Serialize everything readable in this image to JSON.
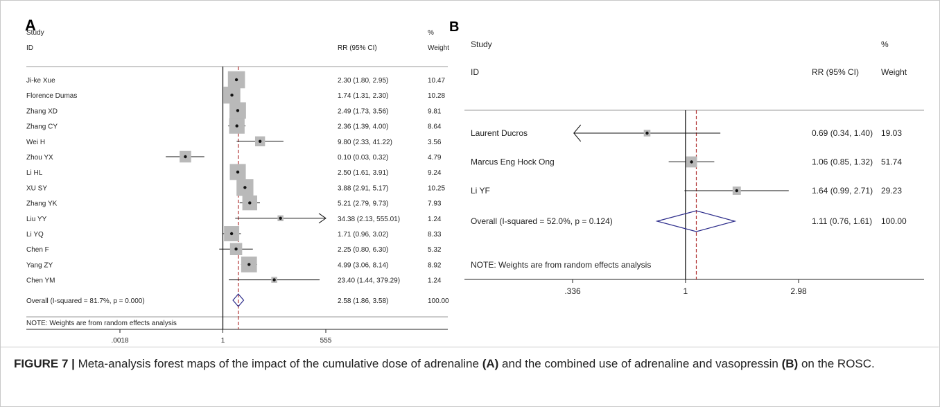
{
  "figure": {
    "caption": {
      "label": "FIGURE 7",
      "bar": "|",
      "text1": "Meta-analysis forest maps of the impact of the cumulative dose of adrenaline",
      "ref_a": "(A)",
      "text2": "and the combined use of adrenaline and vasopressin",
      "ref_b": "(B)",
      "text3": "on the ROSC."
    }
  },
  "chart_data": [
    {
      "type": "forest",
      "panel_label": "A",
      "headers": {
        "study_top": "Study",
        "study_id": "ID",
        "effect": "RR (95% CI)",
        "weight_top": "%",
        "weight": "Weight"
      },
      "x_scale": "log",
      "xlim": [
        0.0018,
        555
      ],
      "null_line": 1,
      "x_ticks": [
        ".0018",
        "1",
        "555"
      ],
      "studies": [
        {
          "name": "Ji-ke Xue",
          "rr": 2.3,
          "lo": 1.8,
          "hi": 2.95,
          "ci_text": "2.30 (1.80, 2.95)",
          "weight": "10.47"
        },
        {
          "name": "Florence Dumas",
          "rr": 1.74,
          "lo": 1.31,
          "hi": 2.3,
          "ci_text": "1.74 (1.31, 2.30)",
          "weight": "10.28"
        },
        {
          "name": "Zhang XD",
          "rr": 2.49,
          "lo": 1.73,
          "hi": 3.56,
          "ci_text": "2.49 (1.73, 3.56)",
          "weight": "9.81"
        },
        {
          "name": "Zhang CY",
          "rr": 2.36,
          "lo": 1.39,
          "hi": 4.0,
          "ci_text": "2.36 (1.39, 4.00)",
          "weight": "8.64"
        },
        {
          "name": "Wei H",
          "rr": 9.8,
          "lo": 2.33,
          "hi": 41.22,
          "ci_text": "9.80 (2.33, 41.22)",
          "weight": "3.56"
        },
        {
          "name": "Zhou YX",
          "rr": 0.1,
          "lo": 0.03,
          "hi": 0.32,
          "ci_text": "0.10 (0.03, 0.32)",
          "weight": "4.79"
        },
        {
          "name": "Li HL",
          "rr": 2.5,
          "lo": 1.61,
          "hi": 3.91,
          "ci_text": "2.50 (1.61, 3.91)",
          "weight": "9.24"
        },
        {
          "name": "XU SY",
          "rr": 3.88,
          "lo": 2.91,
          "hi": 5.17,
          "ci_text": "3.88 (2.91, 5.17)",
          "weight": "10.25"
        },
        {
          "name": "Zhang YK",
          "rr": 5.21,
          "lo": 2.79,
          "hi": 9.73,
          "ci_text": "5.21 (2.79, 9.73)",
          "weight": "7.93"
        },
        {
          "name": "Liu YY",
          "rr": 34.38,
          "lo": 2.13,
          "hi": 555.01,
          "ci_text": "34.38 (2.13, 555.01)",
          "weight": "1.24",
          "arrow_right": true
        },
        {
          "name": "Li YQ",
          "rr": 1.71,
          "lo": 0.96,
          "hi": 3.02,
          "ci_text": "1.71 (0.96, 3.02)",
          "weight": "8.33"
        },
        {
          "name": "Chen F",
          "rr": 2.25,
          "lo": 0.8,
          "hi": 6.3,
          "ci_text": "2.25 (0.80, 6.30)",
          "weight": "5.32"
        },
        {
          "name": "Yang ZY",
          "rr": 4.99,
          "lo": 3.06,
          "hi": 8.14,
          "ci_text": "4.99 (3.06, 8.14)",
          "weight": "8.92"
        },
        {
          "name": "Chen YM",
          "rr": 23.4,
          "lo": 1.44,
          "hi": 379.29,
          "ci_text": "23.40 (1.44, 379.29)",
          "weight": "1.24"
        }
      ],
      "overall": {
        "label": "Overall  (I-squared = 81.7%, p = 0.000)",
        "rr": 2.58,
        "lo": 1.86,
        "hi": 3.58,
        "ci_text": "2.58 (1.86, 3.58)",
        "weight": "100.00"
      },
      "note": "NOTE: Weights are from random effects analysis"
    },
    {
      "type": "forest",
      "panel_label": "B",
      "headers": {
        "study_top": "Study",
        "study_id": "ID",
        "effect": "RR (95% CI)",
        "weight_top": "%",
        "weight": "Weight"
      },
      "x_scale": "log",
      "xlim": [
        0.336,
        2.98
      ],
      "null_line": 1,
      "x_ticks": [
        ".336",
        "1",
        "2.98"
      ],
      "studies": [
        {
          "name": "Laurent Ducros",
          "rr": 0.69,
          "lo": 0.34,
          "hi": 1.4,
          "ci_text": "0.69 (0.34, 1.40)",
          "weight": "19.03",
          "arrow_left": true
        },
        {
          "name": "Marcus Eng Hock Ong",
          "rr": 1.06,
          "lo": 0.85,
          "hi": 1.32,
          "ci_text": "1.06 (0.85, 1.32)",
          "weight": "51.74"
        },
        {
          "name": "Li YF",
          "rr": 1.64,
          "lo": 0.99,
          "hi": 2.71,
          "ci_text": "1.64 (0.99, 2.71)",
          "weight": "29.23"
        }
      ],
      "overall": {
        "label": "Overall  (I-squared = 52.0%, p = 0.124)",
        "rr": 1.11,
        "lo": 0.76,
        "hi": 1.61,
        "ci_text": "1.11 (0.76, 1.61)",
        "weight": "100.00"
      },
      "note": "NOTE: Weights are from random effects analysis"
    }
  ]
}
